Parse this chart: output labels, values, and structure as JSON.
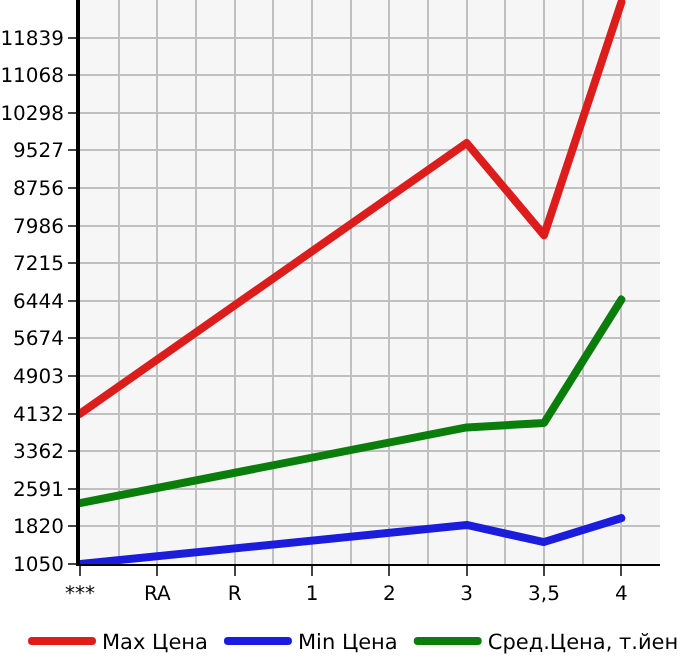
{
  "chart_data": {
    "type": "line",
    "categories": [
      "***",
      "RA",
      "R",
      "1",
      "2",
      "3",
      "3,5",
      "4"
    ],
    "series": [
      {
        "name": "Max Цена",
        "color": "#dd1c1c",
        "values": [
          4130,
          null,
          null,
          null,
          null,
          9680,
          7790,
          12560
        ]
      },
      {
        "name": "Min Цена",
        "color": "#1c1cdd",
        "values": [
          1050,
          null,
          null,
          null,
          null,
          1850,
          1500,
          1990
        ]
      },
      {
        "name": "Сред.Цена, т.йен",
        "color": "#0a7d0a",
        "values": [
          2300,
          null,
          null,
          null,
          null,
          3850,
          3940,
          6470
        ]
      }
    ],
    "ylim": [
      1050,
      12610
    ],
    "yticks": [
      1050,
      1820,
      2591,
      3362,
      4132,
      4903,
      5674,
      6444,
      7215,
      7986,
      8756,
      9527,
      10298,
      11068,
      11839
    ],
    "grid": true,
    "legend": "bottom",
    "marker": "none",
    "line_style": "solid"
  }
}
